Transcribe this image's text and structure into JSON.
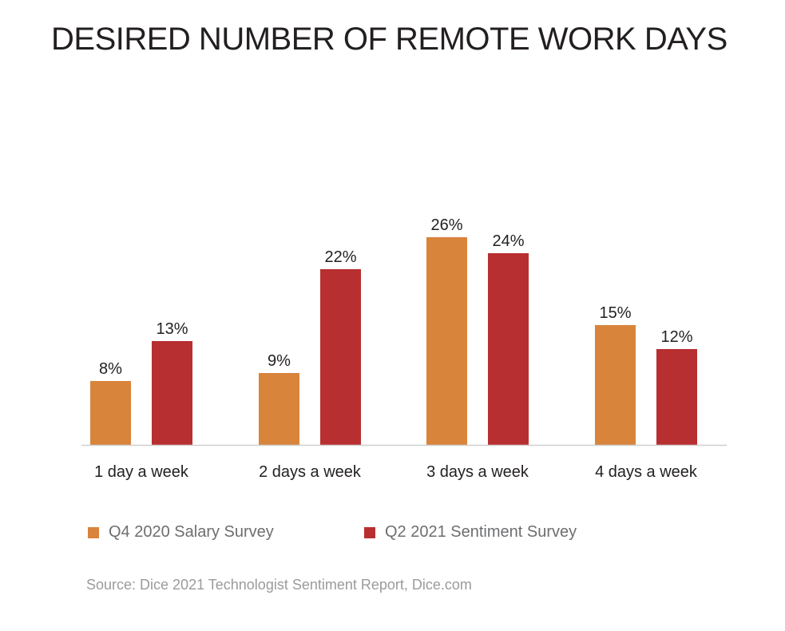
{
  "title": "DESIRED NUMBER OF REMOTE WORK DAYS",
  "source": "Source: Dice 2021 Technologist Sentiment Report, Dice.com",
  "colors": {
    "q4_2020": "#d9843b",
    "q2_2021": "#b82f31",
    "axis": "#cfcfcf",
    "label_text": "#231f20"
  },
  "chart_data": {
    "type": "bar",
    "title": "DESIRED NUMBER OF REMOTE WORK DAYS",
    "categories": [
      "1 day a week",
      "2 days a week",
      "3 days a week",
      "4 days a week"
    ],
    "series": [
      {
        "name": "Q4 2020 Salary Survey",
        "values": [
          8,
          9,
          26,
          15
        ],
        "labels": [
          "8%",
          "9%",
          "26%",
          "15%"
        ]
      },
      {
        "name": "Q2 2021 Sentiment Survey",
        "values": [
          13,
          22,
          24,
          12
        ],
        "labels": [
          "13%",
          "22%",
          "24%",
          "12%"
        ]
      }
    ],
    "xlabel": "",
    "ylabel": "",
    "ylim": [
      0,
      26
    ],
    "grid": false,
    "legend": "bottom"
  }
}
